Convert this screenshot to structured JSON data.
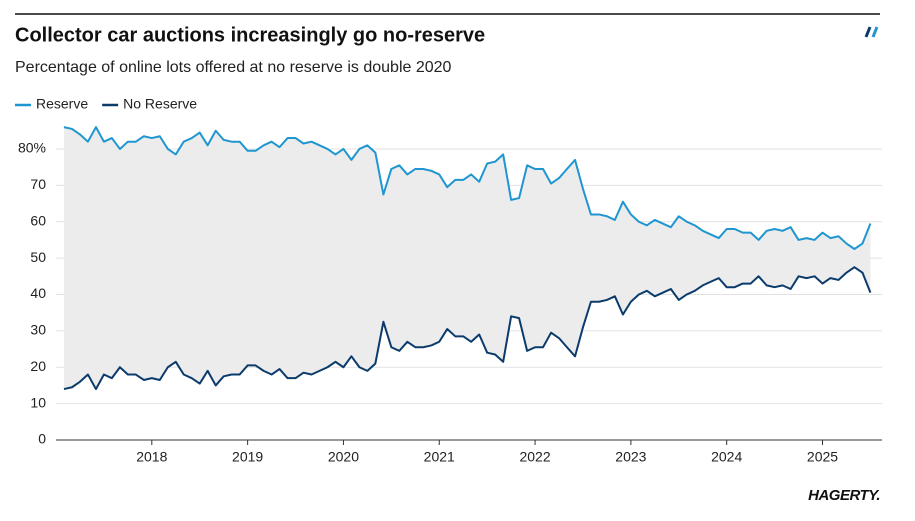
{
  "chart_data": {
    "type": "line",
    "title": "Collector car auctions increasingly go no-reserve",
    "subtitle": "Percentage of online lots offered at no reserve is double 2020",
    "source": "HAGERTY.",
    "x": [
      2017.083,
      2017.167,
      2017.25,
      2017.333,
      2017.417,
      2017.5,
      2017.583,
      2017.667,
      2017.75,
      2017.833,
      2017.917,
      2018,
      2018.083,
      2018.167,
      2018.25,
      2018.333,
      2018.417,
      2018.5,
      2018.583,
      2018.667,
      2018.75,
      2018.833,
      2018.917,
      2019,
      2019.083,
      2019.167,
      2019.25,
      2019.333,
      2019.417,
      2019.5,
      2019.583,
      2019.667,
      2019.75,
      2019.833,
      2019.917,
      2020,
      2020.083,
      2020.167,
      2020.25,
      2020.333,
      2020.417,
      2020.5,
      2020.583,
      2020.667,
      2020.75,
      2020.833,
      2020.917,
      2021,
      2021.083,
      2021.167,
      2021.25,
      2021.333,
      2021.417,
      2021.5,
      2021.583,
      2021.667,
      2021.75,
      2021.833,
      2021.917,
      2022,
      2022.083,
      2022.167,
      2022.25,
      2022.333,
      2022.417,
      2022.5,
      2022.583,
      2022.667,
      2022.75,
      2022.833,
      2022.917,
      2023,
      2023.083,
      2023.167,
      2023.25,
      2023.333,
      2023.417,
      2023.5,
      2023.583,
      2023.667,
      2023.75,
      2023.833,
      2023.917,
      2024,
      2024.083,
      2024.167,
      2024.25,
      2024.333,
      2024.417,
      2024.5,
      2024.583,
      2024.667,
      2024.75,
      2024.833,
      2024.917,
      2025,
      2025.083,
      2025.167,
      2025.25,
      2025.333,
      2025.417,
      2025.5
    ],
    "series": [
      {
        "name": "Reserve",
        "color": "#1f96d1",
        "values": [
          86,
          85.5,
          84,
          82,
          86,
          82,
          83,
          80,
          82,
          82,
          83.5,
          83,
          83.5,
          80,
          78.5,
          82,
          83,
          84.5,
          81,
          85,
          82.5,
          82,
          82,
          79.5,
          79.5,
          81,
          82,
          80.5,
          83,
          83,
          81.5,
          82,
          81,
          80,
          78.5,
          80,
          77,
          80,
          81,
          79,
          67.5,
          74.5,
          75.5,
          73,
          74.5,
          74.5,
          74,
          73,
          69.5,
          71.5,
          71.5,
          73,
          71,
          76,
          76.5,
          78.5,
          66,
          66.5,
          75.5,
          74.5,
          74.5,
          70.5,
          72,
          74.5,
          77,
          69,
          62,
          62,
          61.5,
          60.5,
          65.5,
          62,
          60,
          59,
          60.5,
          59.5,
          58.5,
          61.5,
          60,
          59,
          57.5,
          56.5,
          55.5,
          58,
          58,
          57,
          57,
          55,
          57.5,
          58,
          57.5,
          58.5,
          55,
          55.5,
          55,
          57,
          55.5,
          56,
          54,
          52.5,
          54,
          59.5
        ]
      },
      {
        "name": "No Reserve",
        "color": "#0b3b6b",
        "values": [
          14,
          14.5,
          16,
          18,
          14,
          18,
          17,
          20,
          18,
          18,
          16.5,
          17,
          16.5,
          20,
          21.5,
          18,
          17,
          15.5,
          19,
          15,
          17.5,
          18,
          18,
          20.5,
          20.5,
          19,
          18,
          19.5,
          17,
          17,
          18.5,
          18,
          19,
          20,
          21.5,
          20,
          23,
          20,
          19,
          21,
          32.5,
          25.5,
          24.5,
          27,
          25.5,
          25.5,
          26,
          27,
          30.5,
          28.5,
          28.5,
          27,
          29,
          24,
          23.5,
          21.5,
          34,
          33.5,
          24.5,
          25.5,
          25.5,
          29.5,
          28,
          25.5,
          23,
          31,
          38,
          38,
          38.5,
          39.5,
          34.5,
          38,
          40,
          41,
          39.5,
          40.5,
          41.5,
          38.5,
          40,
          41,
          42.5,
          43.5,
          44.5,
          42,
          42,
          43,
          43,
          45,
          42.5,
          42,
          42.5,
          41.5,
          45,
          44.5,
          45,
          43,
          44.5,
          44,
          46,
          47.5,
          46,
          40.5
        ]
      }
    ],
    "xlim": [
      2017,
      2025.6
    ],
    "xticks": [
      2018,
      2019,
      2020,
      2021,
      2022,
      2023,
      2024,
      2025
    ],
    "ylim": [
      0,
      87
    ],
    "yticks": [
      0,
      10,
      20,
      30,
      40,
      50,
      60,
      70,
      {
        "value": 80,
        "label": "80%"
      }
    ],
    "grid": true,
    "legend": "top-left",
    "fill_between": "#ececec"
  }
}
